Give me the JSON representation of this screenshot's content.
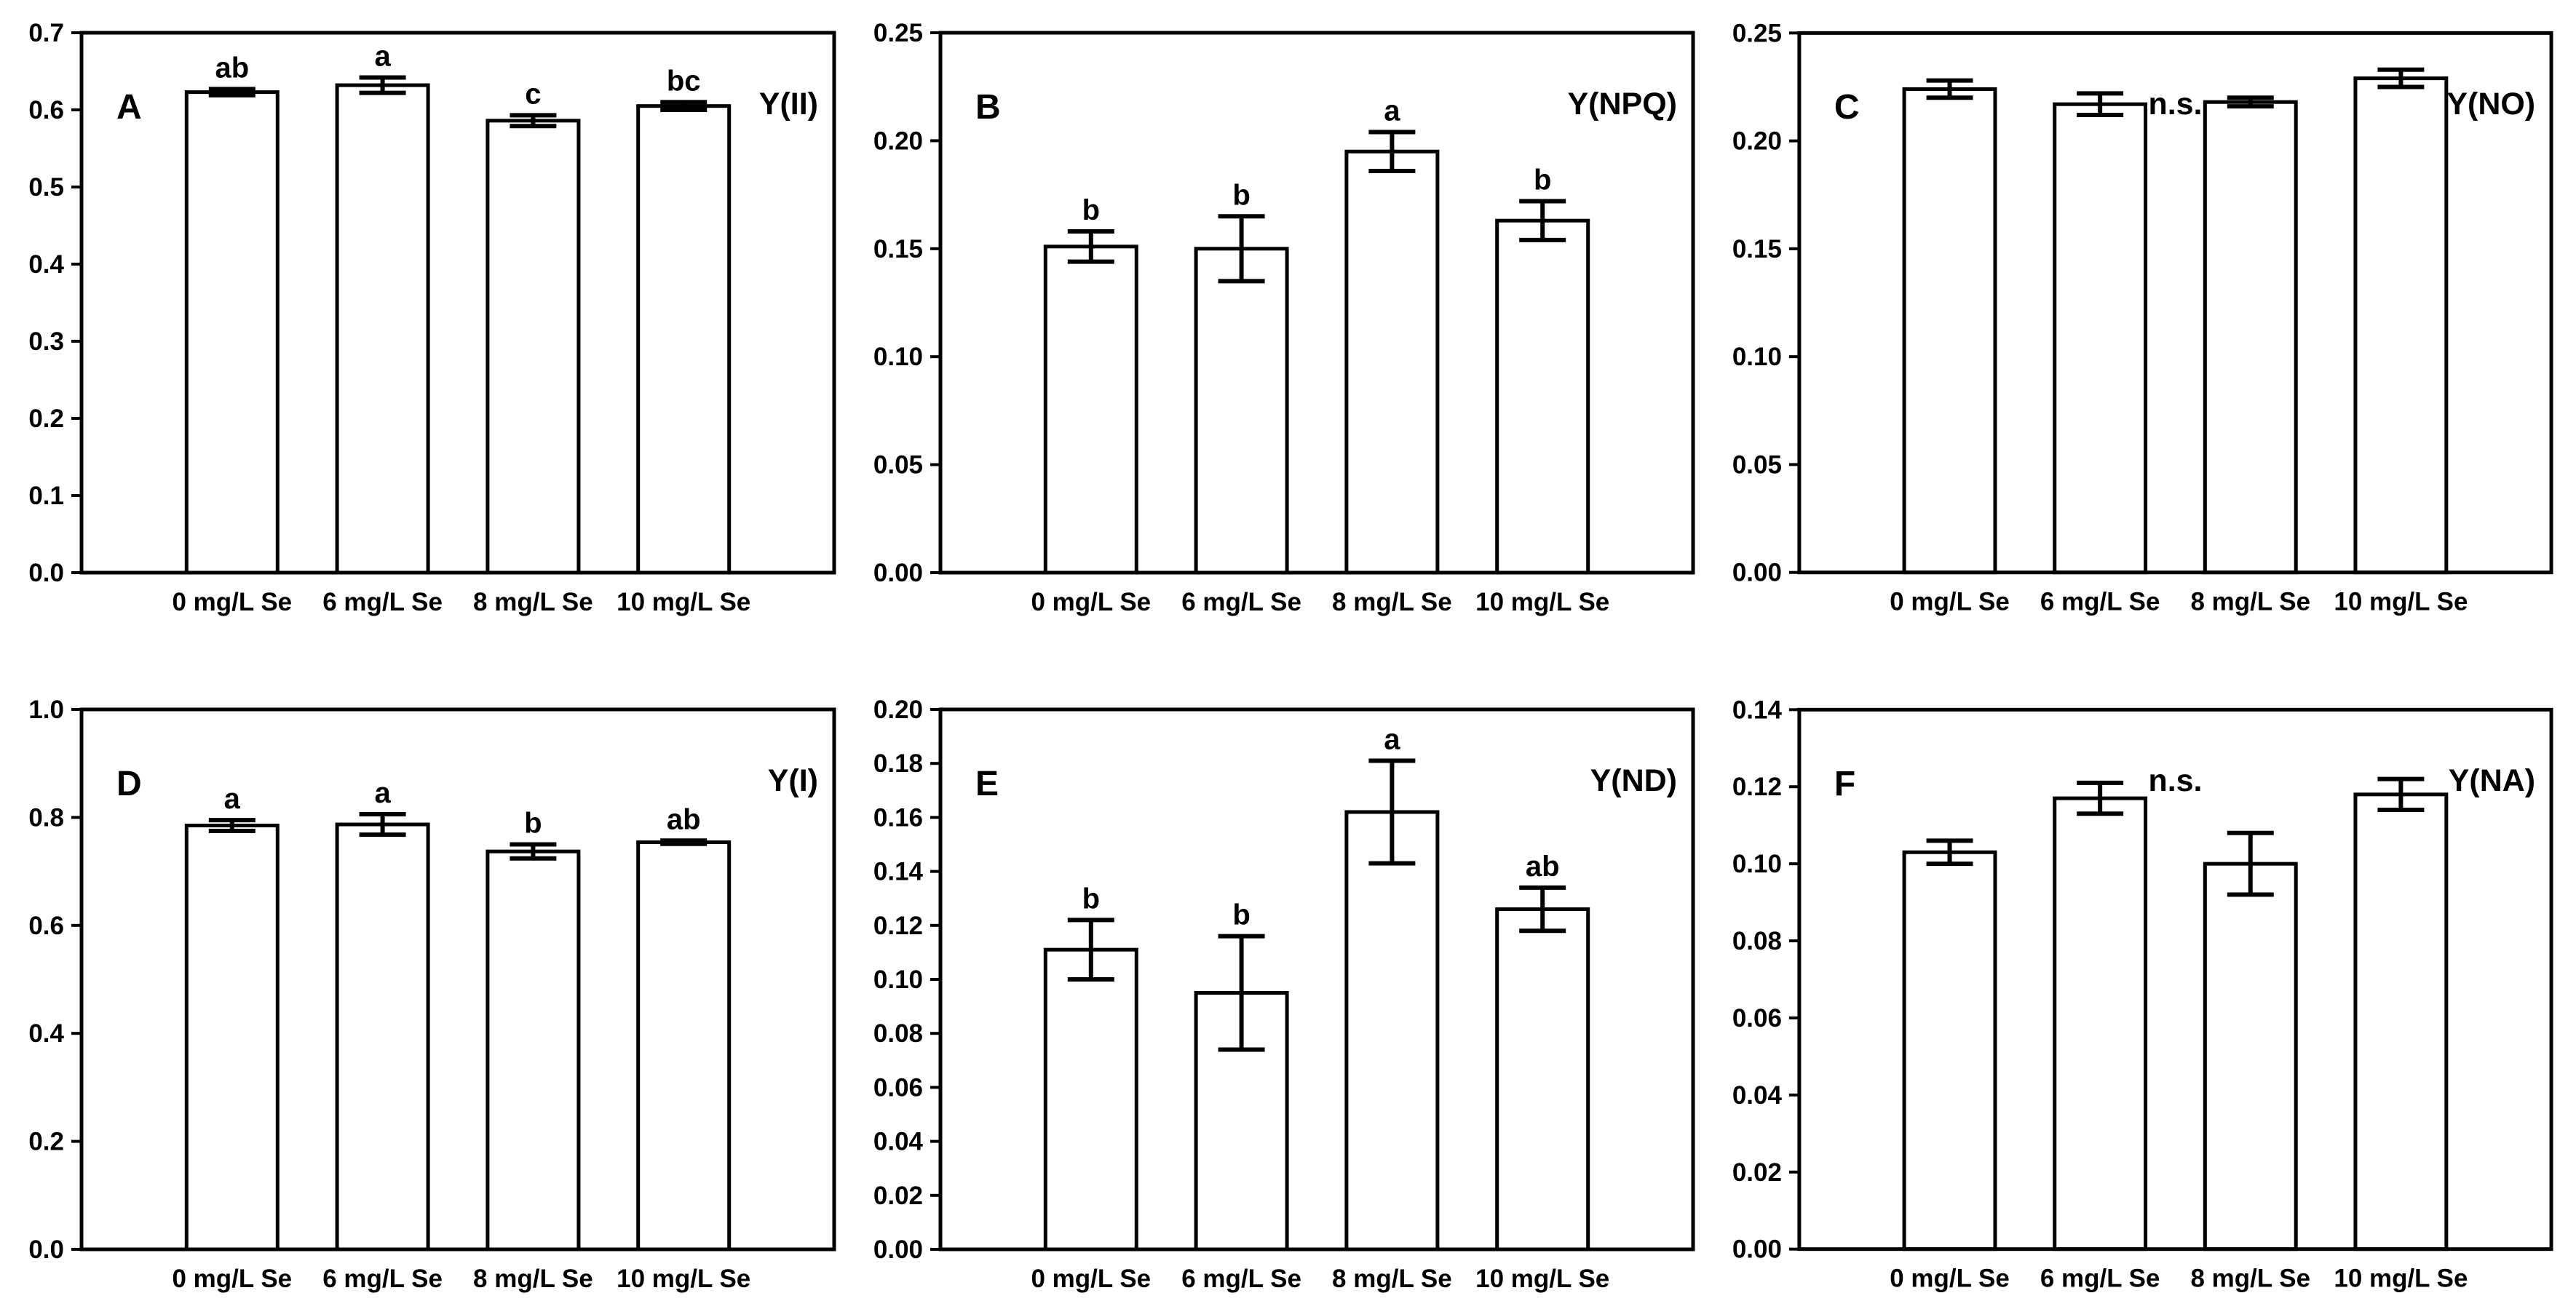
{
  "figure": {
    "background_color": "#ffffff",
    "ink_color": "#000000",
    "bar_fill_color": "#ffffff",
    "rows": 2,
    "cols": 3
  },
  "chart_data": [
    {
      "type": "bar",
      "panel_letter": "A",
      "title": "Y(II)",
      "categories": [
        "0 mg/L Se",
        "6 mg/L Se",
        "8 mg/L Se",
        "10 mg/L Se"
      ],
      "values": [
        0.623,
        0.632,
        0.586,
        0.605
      ],
      "errors": [
        0.004,
        0.01,
        0.007,
        0.005
      ],
      "sig_letters": [
        "ab",
        "a",
        "c",
        "bc"
      ],
      "ylim": [
        0,
        0.7
      ],
      "ytick_labels": [
        "0.0",
        "0.1",
        "0.2",
        "0.3",
        "0.4",
        "0.5",
        "0.6",
        "0.7"
      ],
      "grid": false,
      "legend": "none"
    },
    {
      "type": "bar",
      "panel_letter": "B",
      "title": "Y(NPQ)",
      "categories": [
        "0 mg/L Se",
        "6 mg/L Se",
        "8 mg/L Se",
        "10 mg/L Se"
      ],
      "values": [
        0.151,
        0.15,
        0.195,
        0.163
      ],
      "errors": [
        0.007,
        0.015,
        0.009,
        0.009
      ],
      "sig_letters": [
        "b",
        "b",
        "a",
        "b"
      ],
      "ylim": [
        0,
        0.25
      ],
      "ytick_labels": [
        "0.00",
        "0.05",
        "0.10",
        "0.15",
        "0.20",
        "0.25"
      ],
      "grid": false,
      "legend": "none"
    },
    {
      "type": "bar",
      "panel_letter": "C",
      "title": "Y(NO)",
      "ns_label": "n.s.",
      "categories": [
        "0 mg/L Se",
        "6 mg/L Se",
        "8 mg/L Se",
        "10 mg/L Se"
      ],
      "values": [
        0.224,
        0.217,
        0.218,
        0.229
      ],
      "errors": [
        0.004,
        0.005,
        0.002,
        0.004
      ],
      "sig_letters": [
        "",
        "",
        "",
        ""
      ],
      "ylim": [
        0,
        0.25
      ],
      "ytick_labels": [
        "0.00",
        "0.05",
        "0.10",
        "0.15",
        "0.20",
        "0.25"
      ],
      "grid": false,
      "legend": "none"
    },
    {
      "type": "bar",
      "panel_letter": "D",
      "title": "Y(I)",
      "categories": [
        "0 mg/L Se",
        "6 mg/L Se",
        "8 mg/L Se",
        "10 mg/L Se"
      ],
      "values": [
        0.785,
        0.787,
        0.737,
        0.754
      ],
      "errors": [
        0.01,
        0.019,
        0.013,
        0.003
      ],
      "sig_letters": [
        "a",
        "a",
        "b",
        "ab"
      ],
      "ylim": [
        0,
        1.0
      ],
      "ytick_labels": [
        "0.0",
        "0.2",
        "0.4",
        "0.6",
        "0.8",
        "1.0"
      ],
      "grid": false,
      "legend": "none"
    },
    {
      "type": "bar",
      "panel_letter": "E",
      "title": "Y(ND)",
      "categories": [
        "0 mg/L Se",
        "6 mg/L Se",
        "8 mg/L Se",
        "10 mg/L Se"
      ],
      "values": [
        0.111,
        0.095,
        0.162,
        0.126
      ],
      "errors": [
        0.011,
        0.021,
        0.019,
        0.008
      ],
      "sig_letters": [
        "b",
        "b",
        "a",
        "ab"
      ],
      "ylim": [
        0,
        0.2
      ],
      "ytick_labels": [
        "0.00",
        "0.02",
        "0.04",
        "0.06",
        "0.08",
        "0.10",
        "0.12",
        "0.14",
        "0.16",
        "0.18",
        "0.20"
      ],
      "grid": false,
      "legend": "none"
    },
    {
      "type": "bar",
      "panel_letter": "F",
      "title": "Y(NA)",
      "ns_label": "n.s.",
      "categories": [
        "0 mg/L Se",
        "6 mg/L Se",
        "8 mg/L Se",
        "10 mg/L Se"
      ],
      "values": [
        0.103,
        0.117,
        0.1,
        0.118
      ],
      "errors": [
        0.003,
        0.004,
        0.008,
        0.004
      ],
      "sig_letters": [
        "",
        "",
        "",
        ""
      ],
      "ylim": [
        0,
        0.14
      ],
      "ytick_labels": [
        "0.00",
        "0.02",
        "0.04",
        "0.06",
        "0.08",
        "0.10",
        "0.12",
        "0.14"
      ],
      "grid": false,
      "legend": "none"
    }
  ]
}
